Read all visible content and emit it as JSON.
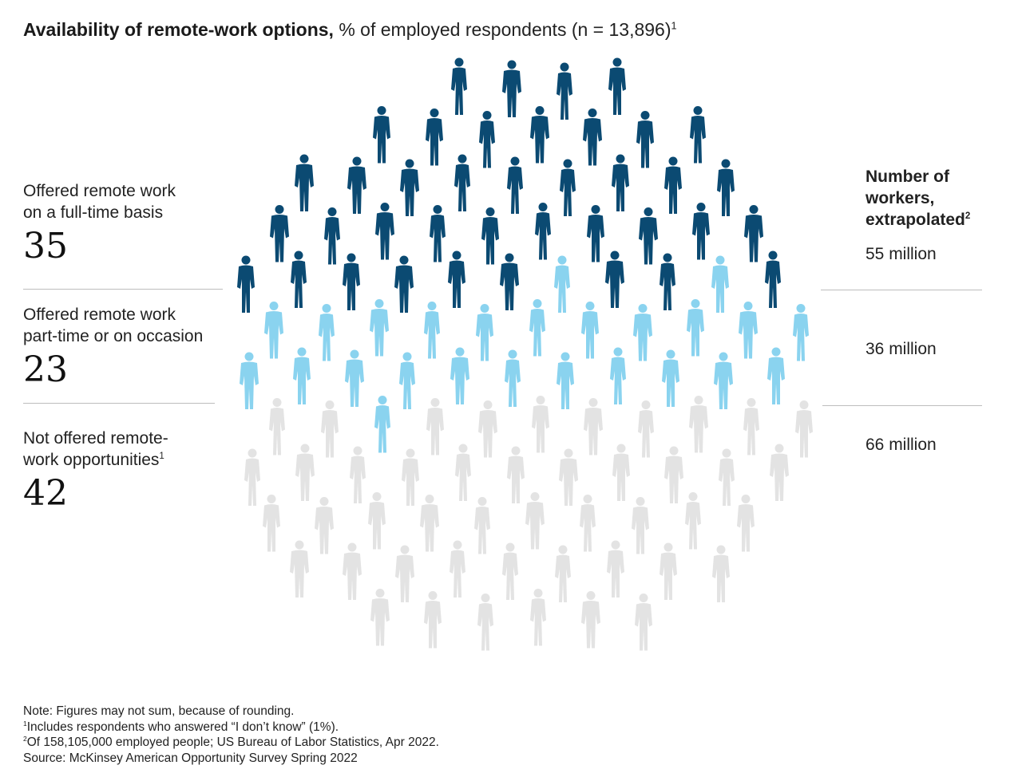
{
  "title": {
    "bold": "Availability of remote-work options,",
    "rest": " % of employed respondents (n = 13,896)",
    "sup": "1"
  },
  "legend": {
    "header_lines": [
      "Number of",
      "workers,",
      "extrapolated"
    ],
    "header_sup": "2"
  },
  "colors": {
    "full_time": "#0b4a72",
    "part_time": "#8ad3ef",
    "not_offered": "#e3e3e3"
  },
  "icon": "person-silhouette-icon",
  "chart_data": {
    "type": "pictogram",
    "title": "Availability of remote-work options, % of employed respondents (n = 13,896)",
    "categories": [
      {
        "label_lines": [
          "Offered remote work",
          "on a full-time basis"
        ],
        "label_sup": "",
        "value": 35,
        "workers": "55 million",
        "color": "#0b4a72"
      },
      {
        "label_lines": [
          "Offered remote work",
          "part-time or on occasion"
        ],
        "label_sup": "",
        "value": 23,
        "workers": "36 million",
        "color": "#8ad3ef"
      },
      {
        "label_lines": [
          "Not offered remote-",
          "work opportunities"
        ],
        "label_sup": "1",
        "value": 42,
        "workers": "66 million",
        "color": "#e3e3e3"
      }
    ]
  },
  "notes": {
    "note": "Note: Figures may not sum, because of rounding.",
    "fn1_sup": "1",
    "fn1": "Includes respondents who answered “I don’t know” (1%).",
    "fn2_sup": "2",
    "fn2": "Of 158,105,000 employed people; US Bureau of Labor Statistics, Apr 2022.",
    "source": "Source: McKinsey American Opportunity Survey Spring 2022"
  }
}
